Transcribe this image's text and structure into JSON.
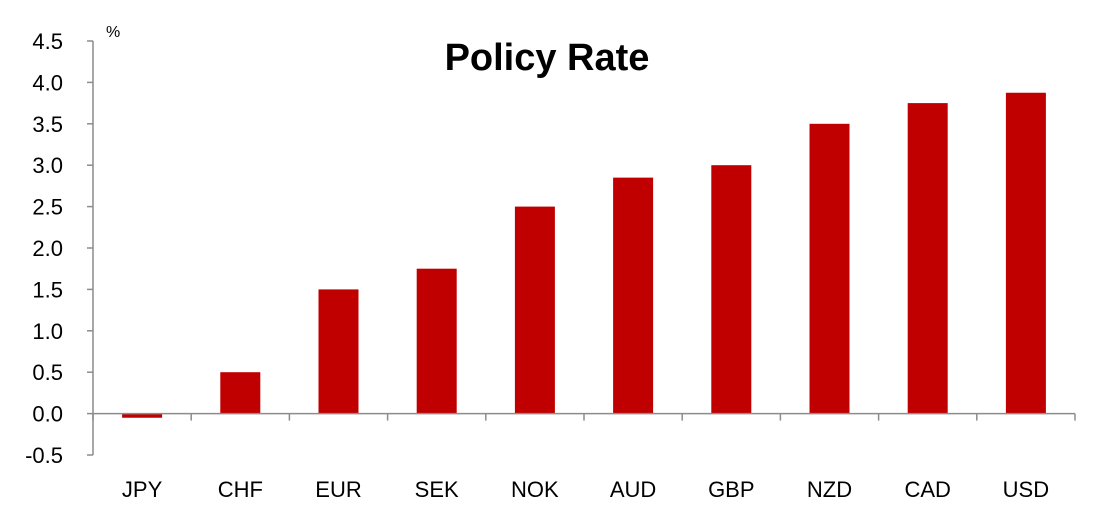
{
  "chart_data": {
    "type": "bar",
    "title": "Policy Rate",
    "unit_label": "%",
    "xlabel": "",
    "ylabel": "",
    "categories": [
      "JPY",
      "CHF",
      "EUR",
      "SEK",
      "NOK",
      "AUD",
      "GBP",
      "NZD",
      "CAD",
      "USD"
    ],
    "values": [
      -0.05,
      0.5,
      1.5,
      1.75,
      2.5,
      2.85,
      3.0,
      3.5,
      3.75,
      3.875
    ],
    "ylim": [
      -0.5,
      4.5
    ],
    "yticks": [
      "-0.5",
      "0.0",
      "0.5",
      "1.0",
      "1.5",
      "2.0",
      "2.5",
      "3.0",
      "3.5",
      "4.0",
      "4.5"
    ],
    "grid": false,
    "legend": "none",
    "bar_color": "#c00000"
  }
}
